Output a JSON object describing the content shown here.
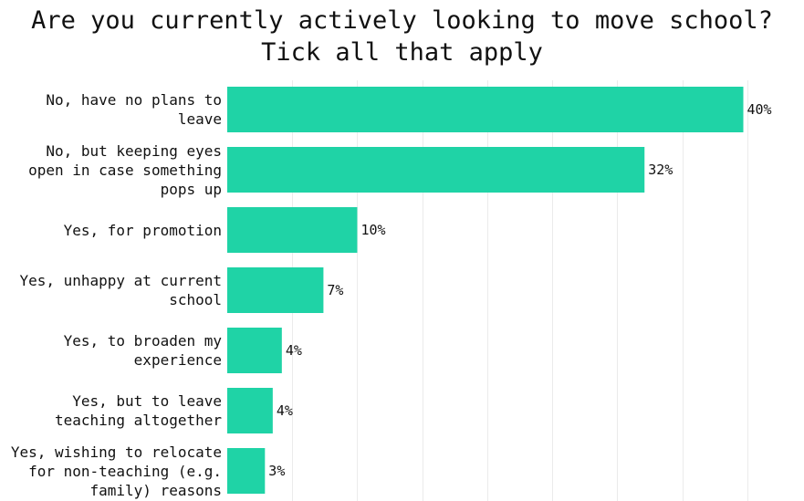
{
  "chart_data": {
    "type": "bar",
    "orientation": "horizontal",
    "title_lines": [
      "Are you currently actively looking to move school?",
      "Tick all that apply"
    ],
    "categories": [
      [
        "No, have no plans to",
        "leave"
      ],
      [
        "No, but keeping eyes",
        "open in case something",
        "pops up"
      ],
      [
        "Yes, for promotion"
      ],
      [
        "Yes, unhappy at current",
        "school"
      ],
      [
        "Yes, to broaden my",
        "experience"
      ],
      [
        "Yes, but to leave",
        "teaching altogether"
      ],
      [
        "Yes, wishing to relocate",
        "for non-teaching (e.g.",
        "family) reasons"
      ]
    ],
    "values": [
      39.7,
      32.1,
      10.0,
      7.4,
      4.2,
      3.5,
      2.9
    ],
    "value_labels": [
      "40%",
      "32%",
      "10%",
      "7%",
      "4%",
      "4%",
      "3%"
    ],
    "xlim": [
      0,
      45
    ],
    "grid": true,
    "colors": {
      "bar": "#1fd3a6",
      "grid": "#ebebeb",
      "text": "#111111"
    }
  }
}
